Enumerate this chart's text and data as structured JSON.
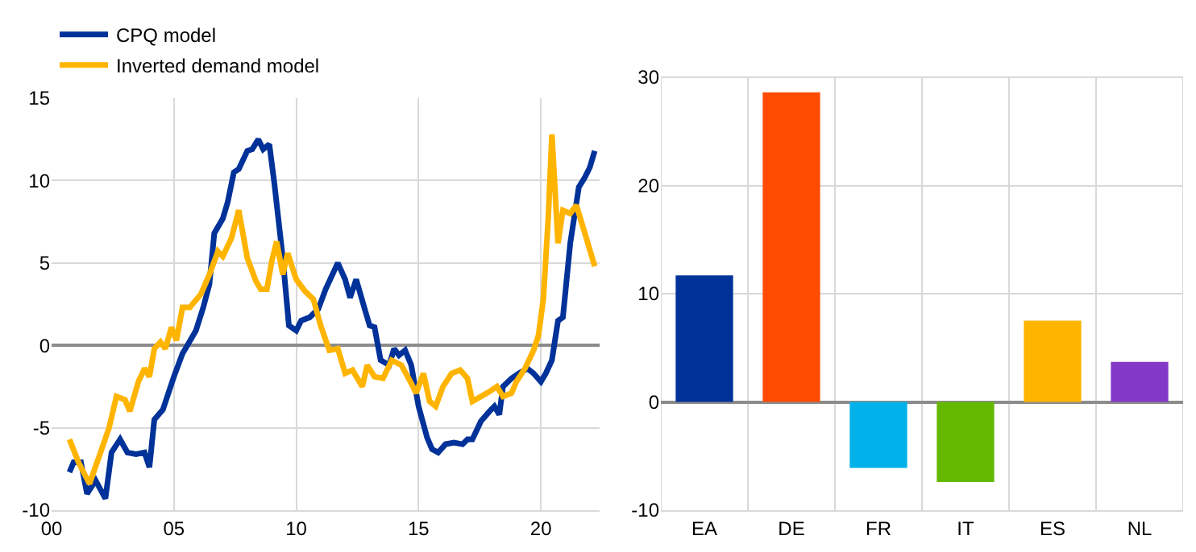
{
  "chart_data": [
    {
      "type": "line",
      "legend": "top left",
      "grid": true,
      "xlim": [
        0,
        22.4
      ],
      "xticks": [
        {
          "value": 0,
          "label": "00"
        },
        {
          "value": 5,
          "label": "05"
        },
        10,
        15,
        20
      ],
      "ylim": [
        -10,
        15
      ],
      "yticks": [
        -10,
        -5,
        0,
        5,
        10,
        15
      ],
      "series": [
        {
          "name": "CPQ model",
          "color": "#003299",
          "x": [
            0.73,
            0.9,
            1.2,
            1.45,
            1.8,
            2.2,
            2.45,
            2.8,
            3.1,
            3.45,
            3.8,
            4.0,
            4.2,
            4.55,
            5.0,
            5.35,
            5.55,
            5.9,
            6.2,
            6.45,
            6.65,
            7.0,
            7.2,
            7.45,
            7.65,
            8.0,
            8.2,
            8.45,
            8.65,
            8.9,
            9.1,
            9.45,
            9.7,
            10.0,
            10.2,
            10.55,
            10.9,
            11.2,
            11.7,
            12.0,
            12.2,
            12.45,
            12.8,
            13.0,
            13.2,
            13.45,
            13.8,
            14.0,
            14.2,
            14.45,
            14.7,
            15.0,
            15.35,
            15.55,
            15.8,
            16.1,
            16.45,
            16.8,
            17.0,
            17.2,
            17.55,
            17.9,
            18.1,
            18.3,
            18.45,
            18.8,
            19.1,
            19.45,
            19.7,
            20.0,
            20.2,
            20.45,
            20.7,
            20.9,
            21.2,
            21.55,
            21.8,
            22.0,
            22.2
          ],
          "values": [
            -7.7,
            -7.1,
            -7.1,
            -9.0,
            -8.2,
            -9.3,
            -6.5,
            -5.7,
            -6.5,
            -6.6,
            -6.5,
            -7.4,
            -4.5,
            -3.9,
            -1.9,
            -0.5,
            0,
            0.9,
            2.3,
            3.7,
            6.8,
            7.7,
            8.7,
            10.5,
            10.7,
            11.8,
            11.9,
            12.5,
            11.9,
            12.2,
            9.9,
            5.3,
            1.2,
            0.9,
            1.5,
            1.7,
            2.2,
            3.4,
            5.0,
            4.0,
            2.9,
            4.0,
            2.2,
            1.2,
            1.1,
            -0.9,
            -1.2,
            -0.2,
            -0.6,
            -0.3,
            -1.2,
            -3.7,
            -5.6,
            -6.3,
            -6.5,
            -6.0,
            -5.9,
            -6.0,
            -5.7,
            -5.7,
            -4.6,
            -4.0,
            -3.7,
            -4.2,
            -2.5,
            -2.0,
            -1.7,
            -1.4,
            -1.7,
            -2.2,
            -1.7,
            -0.9,
            1.5,
            1.7,
            6.2,
            9.6,
            10.2,
            10.8,
            11.8
          ]
        },
        {
          "name": "Inverted demand model",
          "color": "#ffb400",
          "x": [
            0.73,
            1.1,
            1.55,
            2.0,
            2.35,
            2.65,
            3.0,
            3.2,
            3.55,
            3.8,
            4.0,
            4.2,
            4.45,
            4.65,
            4.9,
            5.1,
            5.35,
            5.65,
            6.1,
            6.45,
            6.8,
            7.0,
            7.35,
            7.65,
            8.0,
            8.35,
            8.55,
            8.8,
            9.0,
            9.2,
            9.45,
            9.65,
            10.0,
            10.35,
            10.7,
            11.0,
            11.35,
            11.7,
            12.0,
            12.3,
            12.7,
            12.9,
            13.2,
            13.55,
            13.9,
            14.3,
            14.7,
            14.9,
            15.2,
            15.45,
            15.7,
            16.0,
            16.35,
            16.7,
            17.0,
            17.2,
            17.55,
            17.9,
            18.2,
            18.45,
            18.8,
            19.0,
            19.35,
            19.7,
            19.9,
            20.1,
            20.3,
            20.45,
            20.7,
            20.9,
            21.2,
            21.45,
            21.8,
            22.2
          ],
          "values": [
            -5.7,
            -7.1,
            -8.4,
            -6.5,
            -5.0,
            -3.1,
            -3.3,
            -4.0,
            -2.2,
            -1.4,
            -1.9,
            -0.2,
            0.2,
            -0.2,
            1.1,
            0.3,
            2.3,
            2.3,
            3.1,
            4.3,
            5.7,
            5.4,
            6.5,
            8.2,
            5.3,
            3.9,
            3.4,
            3.4,
            5.1,
            6.3,
            4.3,
            5.6,
            4.0,
            3.3,
            2.8,
            1.2,
            -0.3,
            -0.2,
            -1.7,
            -1.5,
            -2.5,
            -1.2,
            -1.9,
            -2.0,
            -0.9,
            -1.2,
            -2.3,
            -2.9,
            -1.7,
            -3.4,
            -3.7,
            -2.5,
            -1.7,
            -1.5,
            -2.0,
            -3.4,
            -3.1,
            -2.8,
            -2.5,
            -3.1,
            -2.9,
            -2.2,
            -1.4,
            -0.3,
            0.6,
            2.8,
            7.7,
            12.8,
            6.2,
            8.2,
            8.0,
            8.5,
            6.8,
            4.8
          ]
        }
      ]
    },
    {
      "type": "bar",
      "grid": true,
      "categories": [
        "EA",
        "DE",
        "FR",
        "IT",
        "ES",
        "NL"
      ],
      "values": [
        11.7,
        28.6,
        -6.1,
        -7.4,
        7.5,
        3.7
      ],
      "colors": [
        "#003299",
        "#ff4b00",
        "#00b1ea",
        "#65b800",
        "#ffb400",
        "#8139c6"
      ],
      "ylim": [
        -10,
        30
      ],
      "yticks": [
        -10,
        0,
        10,
        20,
        30
      ]
    }
  ]
}
